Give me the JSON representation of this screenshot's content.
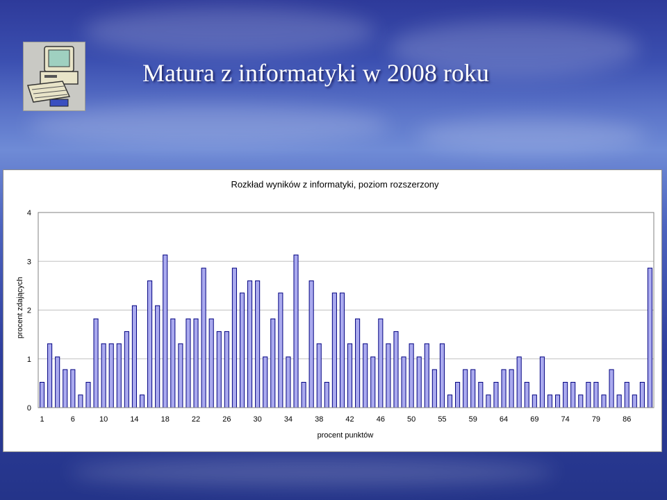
{
  "slide": {
    "title": "Matura z informatyki w 2008 roku"
  },
  "clipart": {
    "icon": "computer-icon"
  },
  "chart_data": {
    "type": "bar",
    "title": "Rozkład wyników z informatyki, poziom rozszerzony",
    "xlabel": "procent punktów",
    "ylabel": "procent zdających",
    "ylim": [
      0,
      4
    ],
    "yticks": [
      "0",
      "1",
      "2",
      "3",
      "4"
    ],
    "grid": true,
    "legend": "none",
    "bar_color": "#aaaaee",
    "bar_edge": "#000080",
    "x_tick_labels": [
      "1",
      "6",
      "10",
      "14",
      "18",
      "22",
      "26",
      "30",
      "34",
      "38",
      "42",
      "46",
      "50",
      "55",
      "59",
      "64",
      "69",
      "74",
      "79",
      "86"
    ],
    "x_tick_label_positions": [
      0,
      4,
      8,
      12,
      16,
      20,
      24,
      28,
      32,
      36,
      40,
      44,
      48,
      52,
      56,
      60,
      64,
      68,
      72,
      76
    ],
    "values": [
      0.52,
      1.31,
      1.04,
      0.78,
      0.78,
      0.26,
      0.52,
      1.82,
      1.31,
      1.31,
      1.31,
      1.56,
      2.09,
      0.26,
      2.6,
      2.09,
      3.13,
      1.82,
      1.31,
      1.82,
      1.82,
      2.86,
      1.82,
      1.56,
      1.56,
      2.86,
      2.35,
      2.6,
      2.6,
      1.04,
      1.82,
      2.35,
      1.04,
      3.13,
      0.52,
      2.6,
      1.31,
      0.52,
      2.35,
      2.35,
      1.31,
      1.82,
      1.31,
      1.04,
      1.82,
      1.31,
      1.56,
      1.04,
      1.31,
      1.04,
      1.31,
      0.78,
      1.31,
      0.26,
      0.52,
      0.78,
      0.78,
      0.52,
      0.26,
      0.52,
      0.78,
      0.78,
      1.04,
      0.52,
      0.26,
      1.04,
      0.26,
      0.26,
      0.52,
      0.52,
      0.26,
      0.52,
      0.52,
      0.26,
      0.78,
      0.26,
      0.52,
      0.26,
      0.52,
      2.86
    ]
  }
}
